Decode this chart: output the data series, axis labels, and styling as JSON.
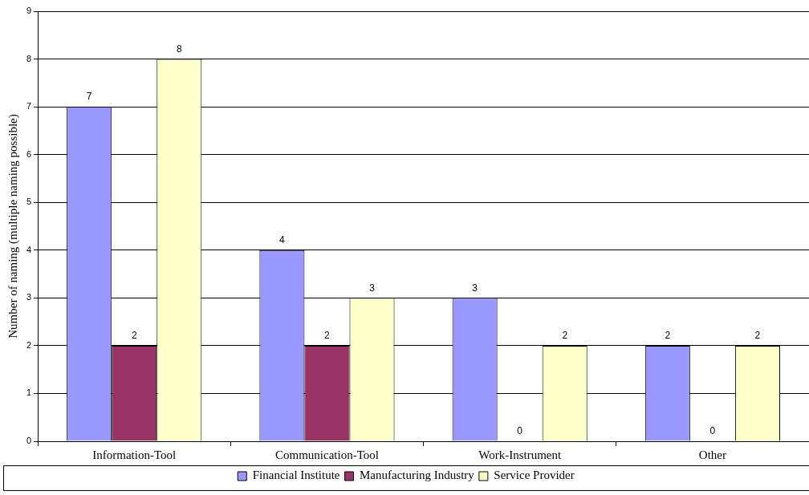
{
  "chart_data": {
    "type": "bar",
    "ylabel": "Number of naming (multiple naming possible)",
    "categories": [
      "Information-Tool",
      "Communication-Tool",
      "Work-Instrument",
      "Other"
    ],
    "series": [
      {
        "name": "Financial Institute",
        "color": "#9999ff",
        "values": [
          7,
          4,
          3,
          2
        ]
      },
      {
        "name": "Manufacturing Industry",
        "color": "#993366",
        "values": [
          2,
          2,
          0,
          0
        ]
      },
      {
        "name": "Service Provider",
        "color": "#ffffcc",
        "values": [
          8,
          3,
          2,
          2
        ]
      }
    ],
    "ylim": [
      0,
      9
    ],
    "yticks": [
      0,
      1,
      2,
      3,
      4,
      5,
      6,
      7,
      8,
      9
    ],
    "grid": "y",
    "legend": "bottom",
    "data_labels": true
  }
}
